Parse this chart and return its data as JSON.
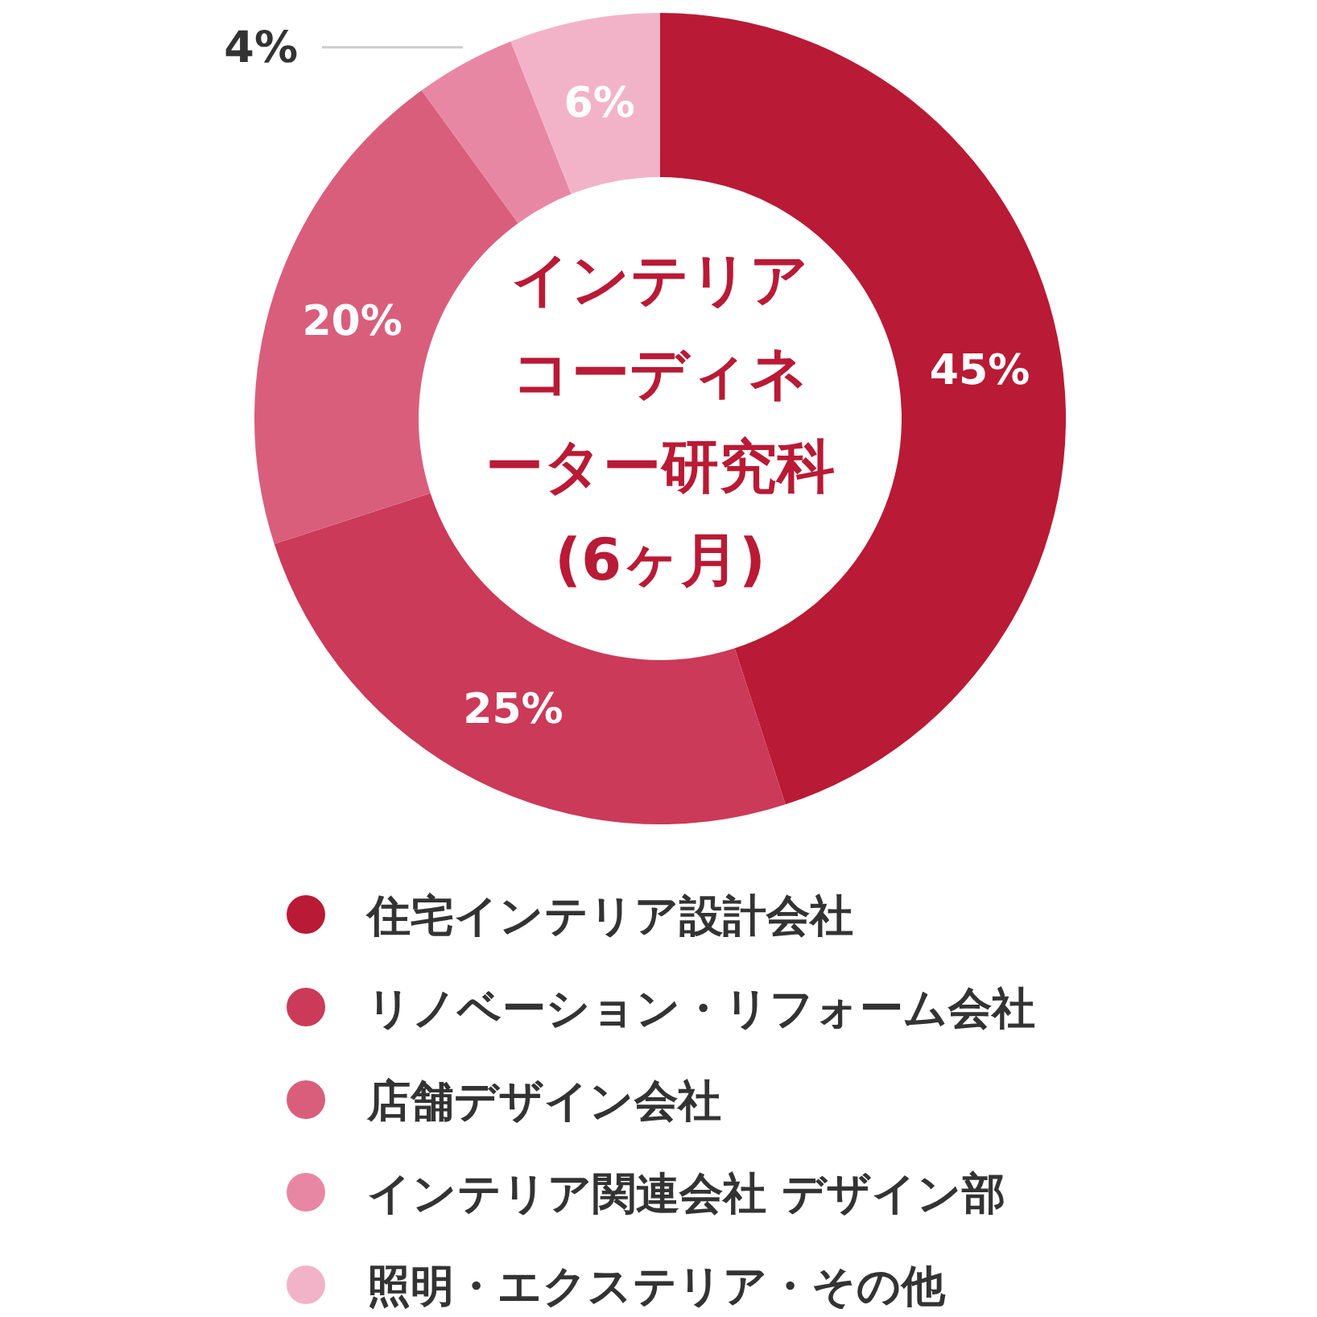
{
  "chart_data": {
    "type": "donut",
    "title": "インテリアコーディネーター研究科(6ヶ月)",
    "categories": [
      "住宅インテリア設計会社",
      "リノベーション・リフォーム会社",
      "店舗デザイン会社",
      "インテリア関連会社 デザイン部",
      "照明・エクステリア・その他"
    ],
    "values": [
      45,
      25,
      20,
      4,
      6
    ],
    "value_labels": [
      "45%",
      "25%",
      "20%",
      "4%",
      "6%"
    ],
    "colors": [
      "#b91a35",
      "#cb3a58",
      "#d95e7c",
      "#e887a3",
      "#f2b3c8"
    ],
    "legend": "bottom"
  }
}
